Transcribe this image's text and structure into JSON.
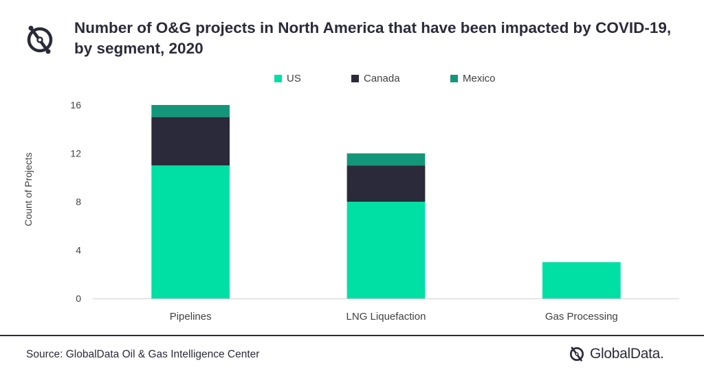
{
  "header": {
    "logo_icon": "globaldata-logo-icon",
    "title": "Number of O&G projects in North America that have been impacted by COVID-19, by segment, 2020"
  },
  "legend": [
    {
      "label": "US",
      "color": "#00dfa4"
    },
    {
      "label": "Canada",
      "color": "#2b2a3a"
    },
    {
      "label": "Mexico",
      "color": "#14967a"
    }
  ],
  "chart_data": {
    "type": "bar",
    "stacked": true,
    "title": "Number of O&G projects in North America that have been impacted by COVID-19, by segment, 2020",
    "categories": [
      "Pipelines",
      "LNG Liquefaction",
      "Gas Processing"
    ],
    "series": [
      {
        "name": "US",
        "values": [
          11,
          8,
          3
        ],
        "color": "#00dfa4"
      },
      {
        "name": "Canada",
        "values": [
          4,
          3,
          0
        ],
        "color": "#2b2a3a"
      },
      {
        "name": "Mexico",
        "values": [
          1,
          1,
          0
        ],
        "color": "#14967a"
      }
    ],
    "xlabel": "",
    "ylabel": "Count of Projects",
    "ylim": [
      0,
      16
    ],
    "yticks": [
      0,
      4,
      8,
      12,
      16
    ],
    "grid": false,
    "legend_position": "top"
  },
  "footer": {
    "source": "Source: GlobalData Oil & Gas Intelligence Center",
    "brand_name": "GlobalData.",
    "brand_icon": "globaldata-logo-icon"
  }
}
